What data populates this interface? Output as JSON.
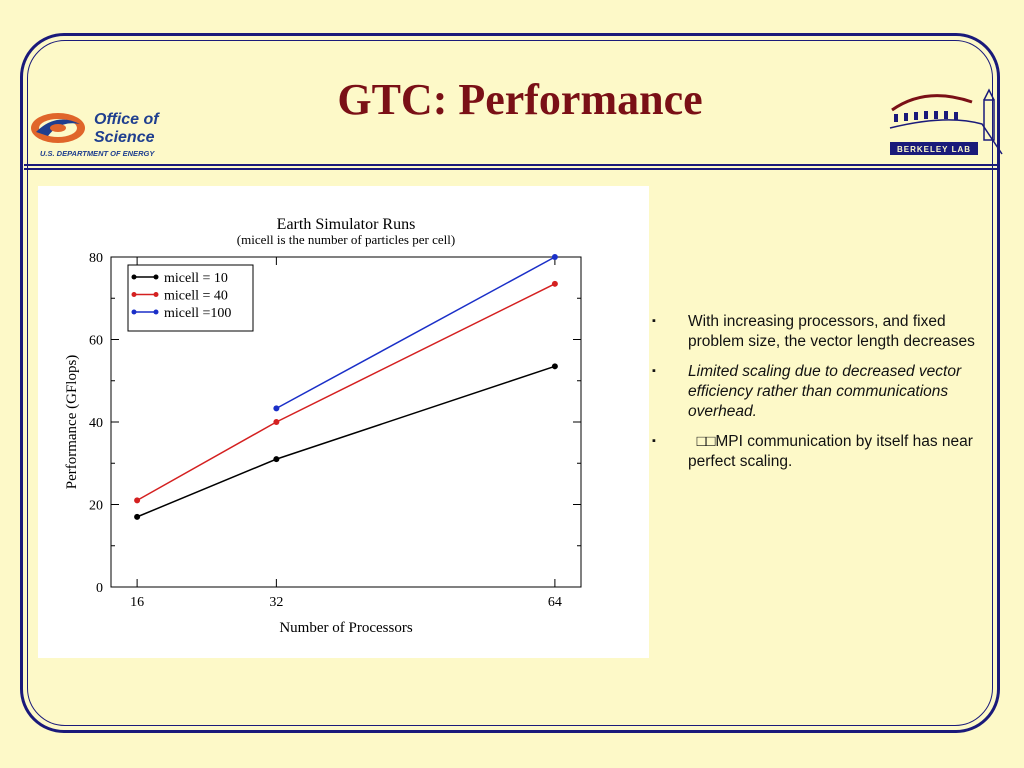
{
  "slide": {
    "title": "GTC: Performance",
    "colors": {
      "background": "#fdf9c8",
      "frame": "#1a1a7a",
      "title": "#7a1016"
    }
  },
  "logos": {
    "left": {
      "line1": "Office of",
      "line2": "Science",
      "subtitle": "U.S. DEPARTMENT OF ENERGY",
      "icon": "doe-office-of-science-logo"
    },
    "right": {
      "label": "BERKELEY LAB",
      "icon": "berkeley-lab-logo"
    }
  },
  "bullets": [
    {
      "marker": "▪",
      "text": "With increasing processors, and fixed problem size, the vector length decreases",
      "italic": false
    },
    {
      "marker": "▪",
      "text": "Limited scaling due to decreased vector efficiency  rather than communications overhead.",
      "italic": true
    },
    {
      "marker": "▪",
      "text": "  □□MPI communication by itself has near perfect scaling.",
      "italic": false
    }
  ],
  "chart_data": {
    "type": "line",
    "title": "Earth Simulator Runs",
    "subtitle": "(micell is the number of particles per cell)",
    "xlabel": "Number of Processors",
    "ylabel": "Performance (GFlops)",
    "xlim": [
      13,
      67
    ],
    "ylim": [
      0,
      80
    ],
    "xticks": [
      16,
      32,
      64
    ],
    "yticks": [
      0,
      20,
      40,
      60,
      80
    ],
    "grid": false,
    "legend_position": "top-left",
    "series": [
      {
        "name": "micell = 10",
        "color": "#000000",
        "x": [
          16,
          32,
          64
        ],
        "y": [
          17,
          31,
          53.5
        ]
      },
      {
        "name": "micell = 40",
        "color": "#d42020",
        "x": [
          16,
          32,
          64
        ],
        "y": [
          21,
          40,
          73.5
        ]
      },
      {
        "name": "micell =100",
        "color": "#1a2fc8",
        "x": [
          32,
          64
        ],
        "y": [
          43.3,
          80
        ]
      }
    ]
  }
}
